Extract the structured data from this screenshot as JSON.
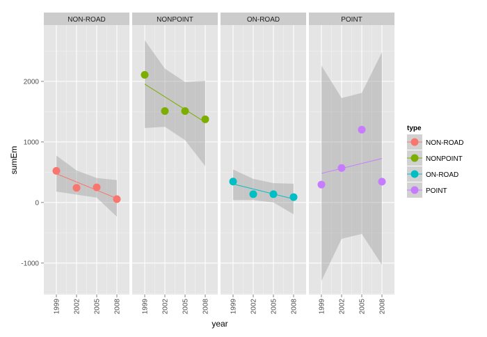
{
  "chart_data": {
    "type": "scatter",
    "facets": [
      "NON-ROAD",
      "NONPOINT",
      "ON-ROAD",
      "POINT"
    ],
    "x": [
      1999,
      2002,
      2005,
      2008
    ],
    "x_tick_labels": [
      "1999",
      "2002",
      "2005",
      "2008"
    ],
    "xlabel": "year",
    "ylabel": "sumEm",
    "ylim": [
      -1520,
      2930
    ],
    "y_ticks": [
      -1000,
      0,
      1000,
      2000
    ],
    "y_tick_labels": [
      "-1000",
      "0",
      "1000",
      "2000"
    ],
    "grid": true,
    "legend": {
      "title": "type",
      "position": "right",
      "entries": [
        "NON-ROAD",
        "NONPOINT",
        "ON-ROAD",
        "POINT"
      ]
    },
    "series": [
      {
        "name": "NON-ROAD",
        "color": "#F8766D",
        "values": [
          522,
          242,
          249,
          55
        ],
        "fit": [
          [
            1999,
            475
          ],
          [
            2008,
            67
          ]
        ],
        "band_upper": [
          [
            1999,
            775
          ],
          [
            2002,
            530
          ],
          [
            2005,
            405
          ],
          [
            2008,
            370
          ]
        ],
        "band_lower": [
          [
            1999,
            180
          ],
          [
            2002,
            130
          ],
          [
            2005,
            80
          ],
          [
            2008,
            -235
          ]
        ]
      },
      {
        "name": "NONPOINT",
        "color": "#7CAE00",
        "values": [
          2108,
          1510,
          1510,
          1374
        ],
        "fit": [
          [
            1999,
            1955
          ],
          [
            2008,
            1325
          ]
        ],
        "band_upper": [
          [
            1999,
            2680
          ],
          [
            2002,
            2210
          ],
          [
            2005,
            1990
          ],
          [
            2008,
            2010
          ]
        ],
        "band_lower": [
          [
            1999,
            1230
          ],
          [
            2002,
            1250
          ],
          [
            2005,
            1030
          ],
          [
            2008,
            600
          ]
        ]
      },
      {
        "name": "ON-ROAD",
        "color": "#00BFC4",
        "values": [
          346,
          137,
          137,
          89
        ],
        "fit": [
          [
            1999,
            305
          ],
          [
            2008,
            58
          ]
        ],
        "band_upper": [
          [
            1999,
            545
          ],
          [
            2002,
            390
          ],
          [
            2005,
            320
          ],
          [
            2008,
            310
          ]
        ],
        "band_lower": [
          [
            1999,
            40
          ],
          [
            2002,
            40
          ],
          [
            2005,
            0
          ],
          [
            2008,
            -195
          ]
        ]
      },
      {
        "name": "POINT",
        "color": "#C77CFF",
        "values": [
          296,
          570,
          1202,
          344
        ],
        "fit": [
          [
            1999,
            480
          ],
          [
            2008,
            727
          ]
        ],
        "band_upper": [
          [
            1999,
            2260
          ],
          [
            2002,
            1725
          ],
          [
            2005,
            1810
          ],
          [
            2008,
            2480
          ]
        ],
        "band_lower": [
          [
            1999,
            -1295
          ],
          [
            2002,
            -600
          ],
          [
            2005,
            -520
          ],
          [
            2008,
            -1030
          ]
        ]
      }
    ]
  }
}
